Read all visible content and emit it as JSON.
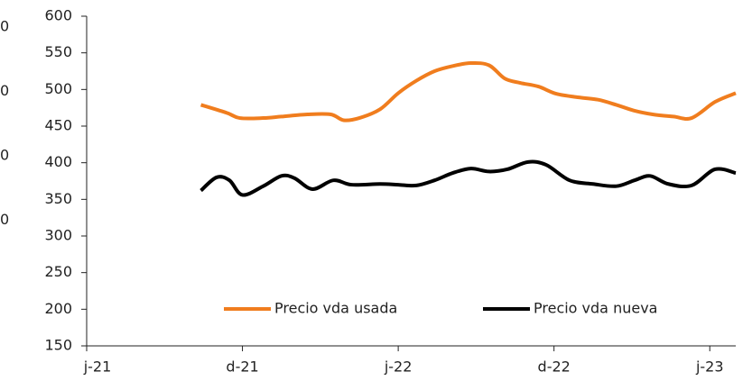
{
  "chart_data": {
    "type": "line",
    "left_axis_fragments": [
      "0",
      "0",
      "0",
      "0"
    ],
    "xlim": [
      0,
      25
    ],
    "ylim": [
      150,
      600
    ],
    "yticks": [
      150,
      200,
      250,
      300,
      350,
      400,
      450,
      500,
      550,
      600
    ],
    "xticks": [
      {
        "value": 0,
        "label": "j-21"
      },
      {
        "value": 6,
        "label": "d-21"
      },
      {
        "value": 12,
        "label": "j-22"
      },
      {
        "value": 18,
        "label": "d-22"
      },
      {
        "value": 24,
        "label": "j-23"
      }
    ],
    "series": [
      {
        "name": "Precio vda usada",
        "color": "#f07d1e",
        "x": [
          4.4,
          5.4,
          5.9,
          6.8,
          7.5,
          8.5,
          9.4,
          9.9,
          10.5,
          11.3,
          12.0,
          12.7,
          13.4,
          14.1,
          14.8,
          15.5,
          16.1,
          16.7,
          17.4,
          18.1,
          19.0,
          19.7,
          20.4,
          21.1,
          21.8,
          22.6,
          23.3,
          24.2,
          25.0
        ],
        "values": [
          479,
          468,
          461,
          461,
          463,
          466,
          466,
          458,
          461,
          473,
          495,
          512,
          525,
          532,
          536,
          533,
          515,
          509,
          504,
          494,
          489,
          486,
          479,
          471,
          466,
          463,
          461,
          483,
          495
        ]
      },
      {
        "name": "Precio vda nueva",
        "color": "#000000",
        "x": [
          4.4,
          5.0,
          5.5,
          6.0,
          6.8,
          7.5,
          8.0,
          8.7,
          9.5,
          10.2,
          11.3,
          12.0,
          12.7,
          13.4,
          14.1,
          14.8,
          15.5,
          16.2,
          17.0,
          17.7,
          18.6,
          19.5,
          20.4,
          21.1,
          21.7,
          22.4,
          23.3,
          24.2,
          25.0
        ],
        "values": [
          362,
          380,
          376,
          356,
          368,
          382,
          379,
          364,
          376,
          370,
          371,
          370,
          369,
          376,
          386,
          392,
          388,
          391,
          401,
          397,
          376,
          371,
          368,
          376,
          382,
          371,
          369,
          391,
          386
        ]
      }
    ]
  }
}
